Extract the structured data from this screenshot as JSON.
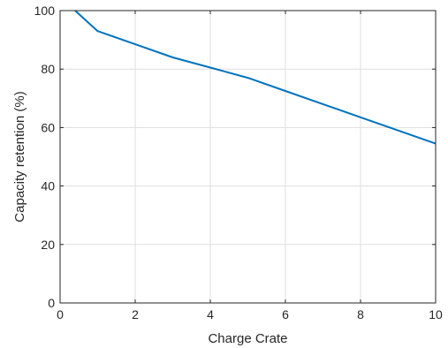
{
  "chart_data": {
    "type": "line",
    "title": "",
    "xlabel": "Charge Crate",
    "ylabel": "Capacity retention (%)",
    "xlim": [
      0,
      10
    ],
    "ylim": [
      0,
      100
    ],
    "xticks": [
      0,
      2,
      4,
      6,
      8,
      10
    ],
    "yticks": [
      0,
      20,
      40,
      60,
      80,
      100
    ],
    "grid": true,
    "box": true,
    "series": [
      {
        "color": "#0072BD",
        "x": [
          0.4,
          1,
          2,
          3,
          4,
          5,
          6,
          7,
          8,
          9,
          10
        ],
        "y": [
          100,
          93,
          88.5,
          84,
          80.5,
          77,
          72.5,
          68,
          63.5,
          59,
          54.5
        ]
      }
    ]
  }
}
